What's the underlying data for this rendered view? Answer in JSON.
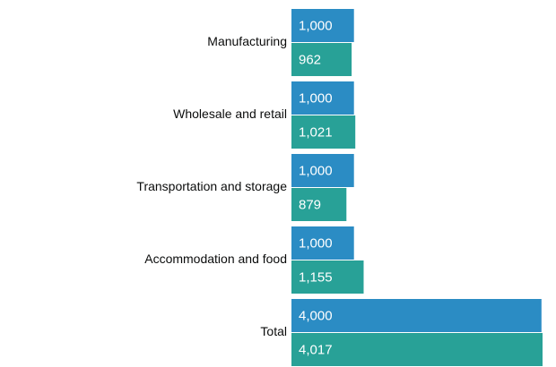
{
  "chart_data": {
    "type": "bar",
    "orientation": "horizontal",
    "categories": [
      "Manufacturing",
      "Wholesale and retail",
      "Transportation and storage",
      "Accommodation and food",
      "Total"
    ],
    "series": [
      {
        "values": [
          1000,
          1000,
          1000,
          1000,
          4000
        ],
        "labels": [
          "1,000",
          "1,000",
          "1,000",
          "1,000",
          "4,000"
        ],
        "color": "#2b8cc4"
      },
      {
        "values": [
          962,
          1021,
          879,
          1155,
          4017
        ],
        "labels": [
          "962",
          "1,021",
          "879",
          "1,155",
          "4,017"
        ],
        "color": "#28a197"
      }
    ],
    "title": "",
    "xlabel": "",
    "ylabel": "",
    "xlim": [
      0,
      4017
    ],
    "grid": false,
    "legend": "none",
    "data_labels": "inside-left"
  }
}
